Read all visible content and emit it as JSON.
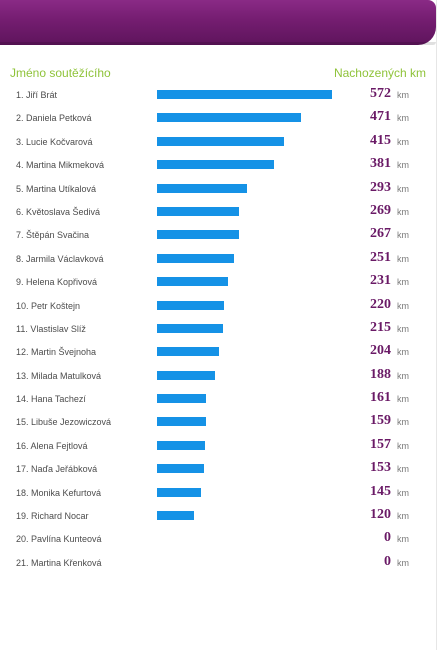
{
  "columns": {
    "name_header": "Jméno soutěžícího",
    "km_header": "Nachozených km"
  },
  "unit": "km",
  "max_km": 572,
  "colors": {
    "header": "#741d70",
    "bar": "#1592e6",
    "value": "#6a1a66",
    "col_head": "#8fc33a"
  },
  "chart_data": {
    "type": "bar",
    "categories": [
      "1. Jiří Brát",
      "2. Daniela Petková",
      "3. Lucie Kočvarová",
      "4. Martina Mikmeková",
      "5. Martina Utíkalová",
      "6. Květoslava Šedivá",
      "7. Štěpán Svačina",
      "8. Jarmila Václavková",
      "9. Helena Kopřivová",
      "10. Petr Koštejn",
      "11. Vlastislav Slíž",
      "12. Martin Švejnoha",
      "13. Milada Matulková",
      "14. Hana Tachezí",
      "15. Libuše Jezowiczová",
      "16. Alena Fejtlová",
      "17. Naďa Jeřábková",
      "18. Monika Kefurtová",
      "19. Richard Nocar",
      "20. Pavlína Kunteová",
      "21. Martina Křenková"
    ],
    "values": [
      572,
      471,
      415,
      381,
      293,
      269,
      267,
      251,
      231,
      220,
      215,
      204,
      188,
      161,
      159,
      157,
      153,
      145,
      120,
      0,
      0
    ],
    "title": "",
    "xlabel": "Jméno soutěžícího",
    "ylabel": "Nachozených km",
    "ylim": [
      0,
      572
    ]
  }
}
